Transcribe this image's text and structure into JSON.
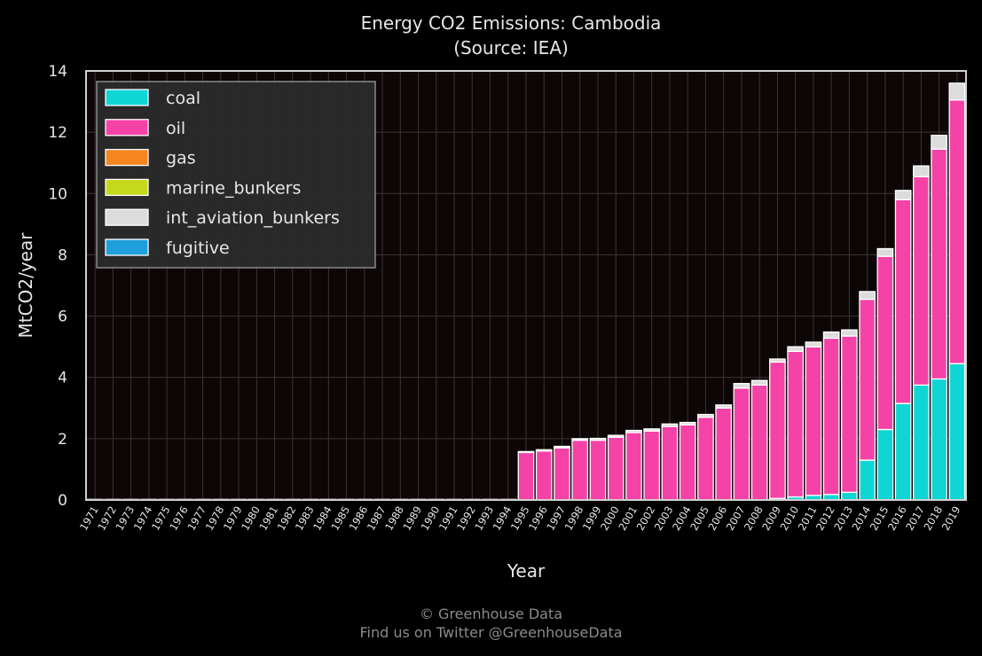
{
  "chart_data": {
    "type": "bar",
    "stacked": true,
    "title": "Energy CO2 Emissions: Cambodia",
    "subtitle": "(Source: IEA)",
    "xlabel": "Year",
    "ylabel": "MtCO2/year",
    "ylim": [
      0,
      14
    ],
    "yticks": [
      0,
      2,
      4,
      6,
      8,
      10,
      12,
      14
    ],
    "grid": true,
    "legend_position": "top-left",
    "categories": [
      "1971",
      "1972",
      "1973",
      "1974",
      "1975",
      "1976",
      "1977",
      "1978",
      "1979",
      "1980",
      "1981",
      "1982",
      "1983",
      "1984",
      "1985",
      "1986",
      "1987",
      "1988",
      "1989",
      "1990",
      "1991",
      "1992",
      "1993",
      "1994",
      "1995",
      "1996",
      "1997",
      "1998",
      "1999",
      "2000",
      "2001",
      "2002",
      "2003",
      "2004",
      "2005",
      "2006",
      "2007",
      "2008",
      "2009",
      "2010",
      "2011",
      "2012",
      "2013",
      "2014",
      "2015",
      "2016",
      "2017",
      "2018",
      "2019"
    ],
    "series": [
      {
        "name": "coal",
        "color": "#10d5d5",
        "values": [
          0,
          0,
          0,
          0,
          0,
          0,
          0,
          0,
          0,
          0,
          0,
          0,
          0,
          0,
          0,
          0,
          0,
          0,
          0,
          0,
          0,
          0,
          0,
          0,
          0,
          0,
          0,
          0,
          0,
          0,
          0,
          0,
          0,
          0,
          0,
          0,
          0,
          0,
          0.05,
          0.1,
          0.15,
          0.18,
          0.25,
          1.3,
          2.3,
          3.15,
          3.75,
          3.95,
          4.45
        ]
      },
      {
        "name": "oil",
        "color": "#f542a7",
        "values": [
          0.02,
          0.02,
          0.02,
          0.02,
          0.02,
          0.02,
          0.02,
          0.02,
          0.02,
          0.02,
          0.02,
          0.02,
          0.02,
          0.02,
          0.02,
          0.02,
          0.02,
          0.02,
          0.02,
          0.02,
          0.02,
          0.02,
          0.02,
          0.02,
          1.55,
          1.6,
          1.7,
          1.95,
          1.95,
          2.05,
          2.2,
          2.25,
          2.4,
          2.45,
          2.7,
          3.0,
          3.65,
          3.75,
          4.45,
          4.75,
          4.85,
          5.1,
          5.1,
          5.25,
          5.65,
          6.65,
          6.8,
          7.5,
          8.6
        ]
      },
      {
        "name": "gas",
        "color": "#f5851f",
        "values": [
          0,
          0,
          0,
          0,
          0,
          0,
          0,
          0,
          0,
          0,
          0,
          0,
          0,
          0,
          0,
          0,
          0,
          0,
          0,
          0,
          0,
          0,
          0,
          0,
          0,
          0,
          0,
          0,
          0,
          0,
          0,
          0,
          0,
          0,
          0,
          0,
          0,
          0,
          0,
          0,
          0,
          0,
          0,
          0,
          0,
          0,
          0,
          0,
          0
        ]
      },
      {
        "name": "marine_bunkers",
        "color": "#c5d81b",
        "values": [
          0,
          0,
          0,
          0,
          0,
          0,
          0,
          0,
          0,
          0,
          0,
          0,
          0,
          0,
          0,
          0,
          0,
          0,
          0,
          0,
          0,
          0,
          0,
          0,
          0,
          0,
          0,
          0,
          0,
          0,
          0,
          0,
          0,
          0,
          0,
          0,
          0,
          0,
          0,
          0,
          0,
          0,
          0,
          0,
          0,
          0,
          0,
          0,
          0
        ]
      },
      {
        "name": "int_aviation_bunkers",
        "color": "#dcdcdc",
        "values": [
          0,
          0,
          0,
          0,
          0,
          0,
          0,
          0,
          0,
          0,
          0,
          0,
          0,
          0,
          0,
          0,
          0,
          0,
          0,
          0,
          0,
          0,
          0,
          0,
          0.03,
          0.04,
          0.05,
          0.05,
          0.06,
          0.06,
          0.07,
          0.07,
          0.08,
          0.08,
          0.09,
          0.1,
          0.15,
          0.15,
          0.1,
          0.15,
          0.15,
          0.2,
          0.2,
          0.25,
          0.25,
          0.3,
          0.35,
          0.45,
          0.55
        ]
      },
      {
        "name": "fugitive",
        "color": "#1f9fdb",
        "values": [
          0,
          0,
          0,
          0,
          0,
          0,
          0,
          0,
          0,
          0,
          0,
          0,
          0,
          0,
          0,
          0,
          0,
          0,
          0,
          0,
          0,
          0,
          0,
          0,
          0,
          0,
          0,
          0,
          0,
          0,
          0,
          0,
          0,
          0,
          0,
          0,
          0,
          0,
          0,
          0,
          0,
          0,
          0,
          0,
          0,
          0,
          0,
          0,
          0
        ]
      }
    ]
  },
  "footer": {
    "copyright": "© Greenhouse Data",
    "twitter": "Find us on Twitter @GreenhouseData"
  }
}
